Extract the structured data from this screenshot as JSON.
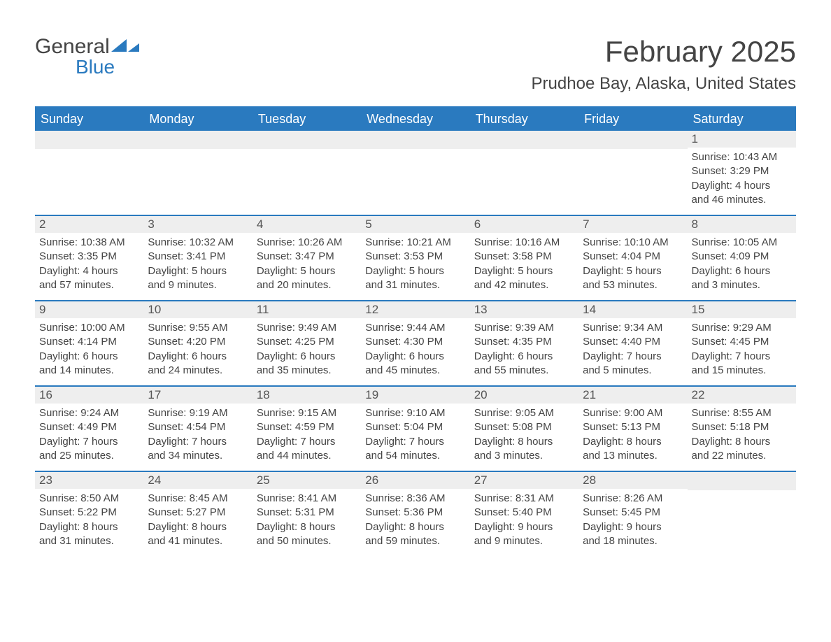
{
  "brand": {
    "word1": "General",
    "word2": "Blue",
    "text_color": "#444444",
    "accent_color": "#2a7abf"
  },
  "title": {
    "month_year": "February 2025",
    "location": "Prudhoe Bay, Alaska, United States"
  },
  "colors": {
    "header_bg": "#2a7abf",
    "header_text": "#ffffff",
    "row_rule": "#2a7abf",
    "daynum_bg": "#eeeeee",
    "body_text": "#444444",
    "background": "#ffffff"
  },
  "typography": {
    "title_fontsize": 42,
    "location_fontsize": 24,
    "dow_fontsize": 18,
    "daynum_fontsize": 17,
    "body_fontsize": 15
  },
  "days_of_week": [
    "Sunday",
    "Monday",
    "Tuesday",
    "Wednesday",
    "Thursday",
    "Friday",
    "Saturday"
  ],
  "labels": {
    "sunrise": "Sunrise",
    "sunset": "Sunset",
    "daylight": "Daylight"
  },
  "weeks": [
    [
      {
        "blank": true
      },
      {
        "blank": true
      },
      {
        "blank": true
      },
      {
        "blank": true
      },
      {
        "blank": true
      },
      {
        "blank": true
      },
      {
        "n": "1",
        "sr": "10:43 AM",
        "ss": "3:29 PM",
        "dl": "4 hours and 46 minutes."
      }
    ],
    [
      {
        "n": "2",
        "sr": "10:38 AM",
        "ss": "3:35 PM",
        "dl": "4 hours and 57 minutes."
      },
      {
        "n": "3",
        "sr": "10:32 AM",
        "ss": "3:41 PM",
        "dl": "5 hours and 9 minutes."
      },
      {
        "n": "4",
        "sr": "10:26 AM",
        "ss": "3:47 PM",
        "dl": "5 hours and 20 minutes."
      },
      {
        "n": "5",
        "sr": "10:21 AM",
        "ss": "3:53 PM",
        "dl": "5 hours and 31 minutes."
      },
      {
        "n": "6",
        "sr": "10:16 AM",
        "ss": "3:58 PM",
        "dl": "5 hours and 42 minutes."
      },
      {
        "n": "7",
        "sr": "10:10 AM",
        "ss": "4:04 PM",
        "dl": "5 hours and 53 minutes."
      },
      {
        "n": "8",
        "sr": "10:05 AM",
        "ss": "4:09 PM",
        "dl": "6 hours and 3 minutes."
      }
    ],
    [
      {
        "n": "9",
        "sr": "10:00 AM",
        "ss": "4:14 PM",
        "dl": "6 hours and 14 minutes."
      },
      {
        "n": "10",
        "sr": "9:55 AM",
        "ss": "4:20 PM",
        "dl": "6 hours and 24 minutes."
      },
      {
        "n": "11",
        "sr": "9:49 AM",
        "ss": "4:25 PM",
        "dl": "6 hours and 35 minutes."
      },
      {
        "n": "12",
        "sr": "9:44 AM",
        "ss": "4:30 PM",
        "dl": "6 hours and 45 minutes."
      },
      {
        "n": "13",
        "sr": "9:39 AM",
        "ss": "4:35 PM",
        "dl": "6 hours and 55 minutes."
      },
      {
        "n": "14",
        "sr": "9:34 AM",
        "ss": "4:40 PM",
        "dl": "7 hours and 5 minutes."
      },
      {
        "n": "15",
        "sr": "9:29 AM",
        "ss": "4:45 PM",
        "dl": "7 hours and 15 minutes."
      }
    ],
    [
      {
        "n": "16",
        "sr": "9:24 AM",
        "ss": "4:49 PM",
        "dl": "7 hours and 25 minutes."
      },
      {
        "n": "17",
        "sr": "9:19 AM",
        "ss": "4:54 PM",
        "dl": "7 hours and 34 minutes."
      },
      {
        "n": "18",
        "sr": "9:15 AM",
        "ss": "4:59 PM",
        "dl": "7 hours and 44 minutes."
      },
      {
        "n": "19",
        "sr": "9:10 AM",
        "ss": "5:04 PM",
        "dl": "7 hours and 54 minutes."
      },
      {
        "n": "20",
        "sr": "9:05 AM",
        "ss": "5:08 PM",
        "dl": "8 hours and 3 minutes."
      },
      {
        "n": "21",
        "sr": "9:00 AM",
        "ss": "5:13 PM",
        "dl": "8 hours and 13 minutes."
      },
      {
        "n": "22",
        "sr": "8:55 AM",
        "ss": "5:18 PM",
        "dl": "8 hours and 22 minutes."
      }
    ],
    [
      {
        "n": "23",
        "sr": "8:50 AM",
        "ss": "5:22 PM",
        "dl": "8 hours and 31 minutes."
      },
      {
        "n": "24",
        "sr": "8:45 AM",
        "ss": "5:27 PM",
        "dl": "8 hours and 41 minutes."
      },
      {
        "n": "25",
        "sr": "8:41 AM",
        "ss": "5:31 PM",
        "dl": "8 hours and 50 minutes."
      },
      {
        "n": "26",
        "sr": "8:36 AM",
        "ss": "5:36 PM",
        "dl": "8 hours and 59 minutes."
      },
      {
        "n": "27",
        "sr": "8:31 AM",
        "ss": "5:40 PM",
        "dl": "9 hours and 9 minutes."
      },
      {
        "n": "28",
        "sr": "8:26 AM",
        "ss": "5:45 PM",
        "dl": "9 hours and 18 minutes."
      },
      {
        "blank": true
      }
    ]
  ]
}
